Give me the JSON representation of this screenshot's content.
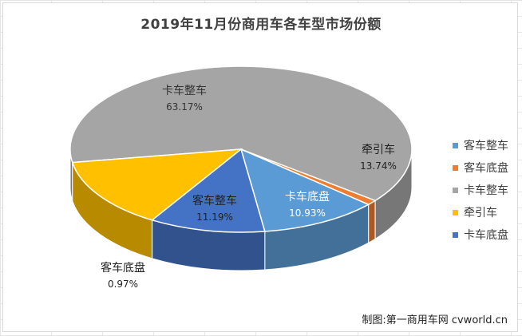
{
  "chart_data": {
    "type": "pie",
    "title": "2019年11月份商用车各车型市场份额",
    "slices": [
      {
        "label": "客车整车",
        "value": 11.19,
        "pct_label": "11.19%",
        "color": "#5b9bd5"
      },
      {
        "label": "客车底盘",
        "value": 0.97,
        "pct_label": "0.97%",
        "color": "#ed7d31"
      },
      {
        "label": "卡车整车",
        "value": 63.17,
        "pct_label": "63.17%",
        "color": "#a5a5a5"
      },
      {
        "label": "牵引车",
        "value": 13.74,
        "pct_label": "13.74%",
        "color": "#ffc000"
      },
      {
        "label": "卡车底盘",
        "value": 10.93,
        "pct_label": "10.93%",
        "color": "#4472c4"
      }
    ],
    "legend_position": "right",
    "three_d": true
  },
  "source_note": "制图:第一商用车网 cvworld.cn"
}
